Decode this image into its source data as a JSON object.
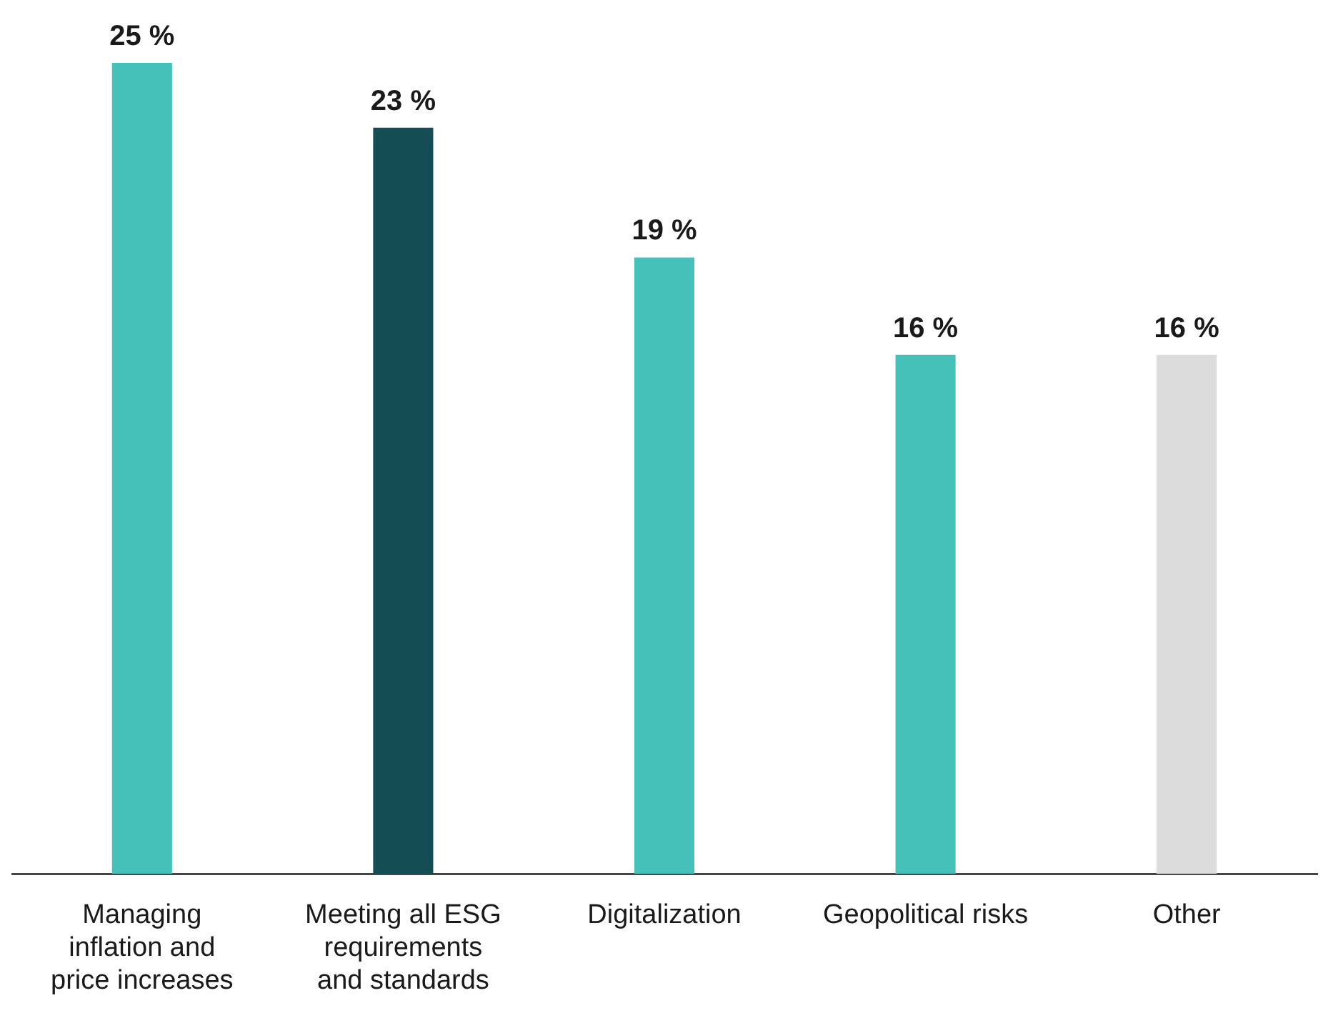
{
  "chart_data": {
    "type": "bar",
    "categories": [
      "Managing inflation and price increases",
      "Meeting all ESG requirements and standards",
      "Digitalization",
      "Geopolitical risks",
      "Other"
    ],
    "values": [
      25,
      23,
      19,
      16,
      16
    ],
    "colors": [
      "#45c1b9",
      "#154d55",
      "#45c1b9",
      "#45c1b9",
      "#dcdcdd"
    ],
    "value_labels": [
      "25 %",
      "23 %",
      "19 %",
      "16 %",
      "16 %"
    ],
    "legend": false
  }
}
